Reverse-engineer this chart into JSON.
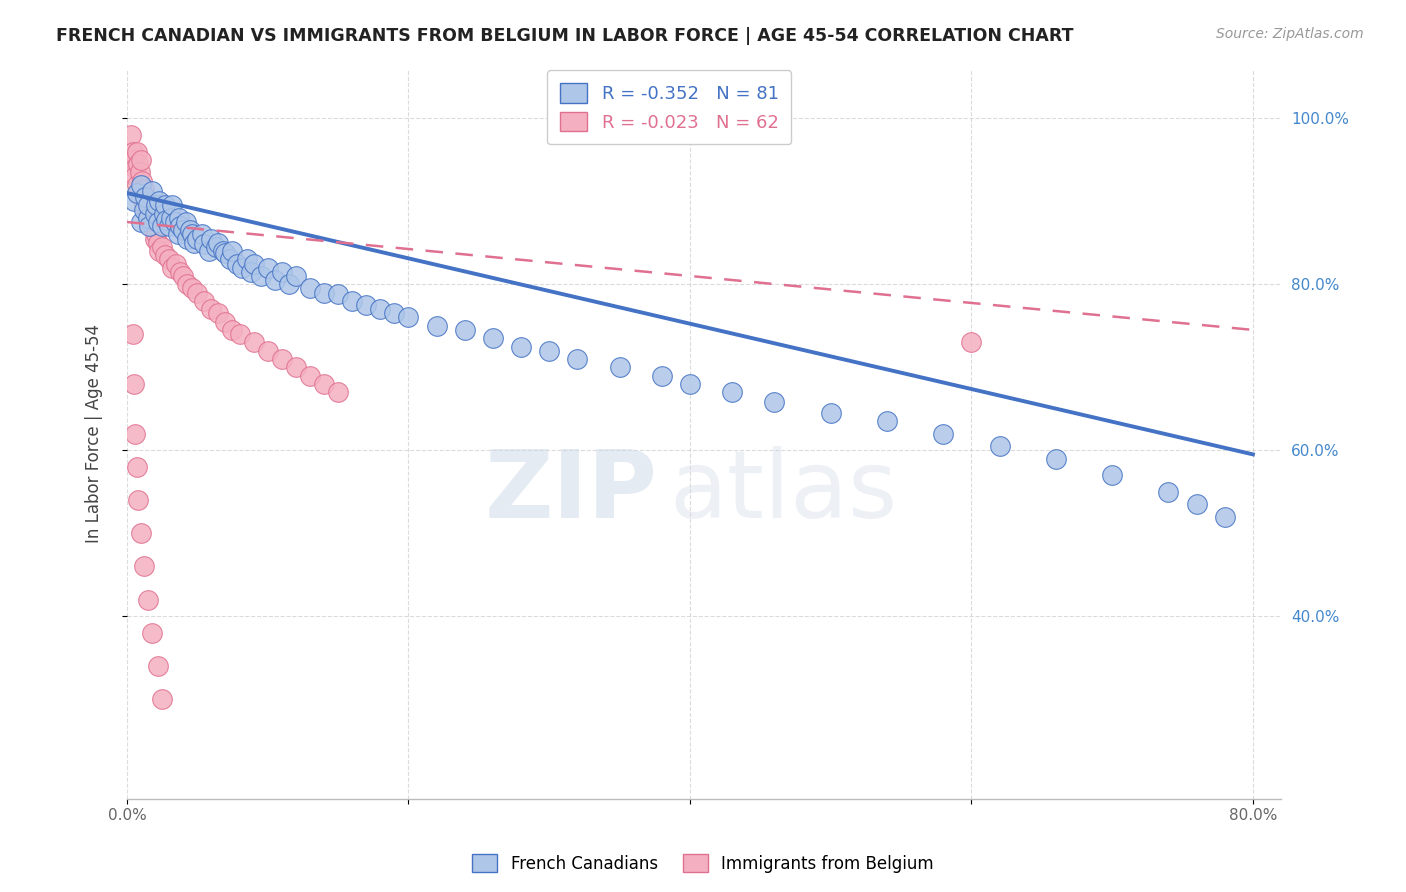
{
  "title": "FRENCH CANADIAN VS IMMIGRANTS FROM BELGIUM IN LABOR FORCE | AGE 45-54 CORRELATION CHART",
  "source": "Source: ZipAtlas.com",
  "ylabel": "In Labor Force | Age 45-54",
  "xlim": [
    0.0,
    0.82
  ],
  "ylim": [
    0.18,
    1.06
  ],
  "xtick_positions": [
    0.0,
    0.2,
    0.4,
    0.6,
    0.8
  ],
  "xticklabels": [
    "0.0%",
    "",
    "",
    "",
    "80.0%"
  ],
  "ytick_positions": [
    0.4,
    0.6,
    0.8,
    1.0
  ],
  "yticklabels": [
    "40.0%",
    "60.0%",
    "80.0%",
    "100.0%"
  ],
  "legend_entries": [
    {
      "label": "R = -0.352   N = 81",
      "color": "#4472c4"
    },
    {
      "label": "R = -0.023   N = 62",
      "color": "#e07090"
    }
  ],
  "blue_scatter_x": [
    0.005,
    0.007,
    0.01,
    0.01,
    0.012,
    0.013,
    0.015,
    0.015,
    0.016,
    0.018,
    0.02,
    0.021,
    0.022,
    0.023,
    0.025,
    0.026,
    0.027,
    0.028,
    0.03,
    0.031,
    0.032,
    0.034,
    0.036,
    0.037,
    0.038,
    0.04,
    0.042,
    0.043,
    0.045,
    0.046,
    0.048,
    0.05,
    0.053,
    0.055,
    0.058,
    0.06,
    0.063,
    0.065,
    0.068,
    0.07,
    0.073,
    0.075,
    0.078,
    0.082,
    0.085,
    0.088,
    0.09,
    0.095,
    0.1,
    0.105,
    0.11,
    0.115,
    0.12,
    0.13,
    0.14,
    0.15,
    0.16,
    0.17,
    0.18,
    0.19,
    0.2,
    0.22,
    0.24,
    0.26,
    0.28,
    0.3,
    0.32,
    0.35,
    0.38,
    0.4,
    0.43,
    0.46,
    0.5,
    0.54,
    0.58,
    0.62,
    0.66,
    0.7,
    0.74,
    0.76,
    0.78
  ],
  "blue_scatter_y": [
    0.9,
    0.91,
    0.875,
    0.92,
    0.89,
    0.905,
    0.88,
    0.895,
    0.87,
    0.912,
    0.885,
    0.895,
    0.875,
    0.9,
    0.87,
    0.885,
    0.895,
    0.878,
    0.87,
    0.88,
    0.895,
    0.875,
    0.86,
    0.88,
    0.87,
    0.865,
    0.875,
    0.855,
    0.865,
    0.86,
    0.85,
    0.855,
    0.86,
    0.848,
    0.84,
    0.855,
    0.845,
    0.85,
    0.84,
    0.838,
    0.83,
    0.84,
    0.825,
    0.82,
    0.83,
    0.815,
    0.825,
    0.81,
    0.82,
    0.805,
    0.815,
    0.8,
    0.81,
    0.795,
    0.79,
    0.788,
    0.78,
    0.775,
    0.77,
    0.765,
    0.76,
    0.75,
    0.745,
    0.735,
    0.725,
    0.72,
    0.71,
    0.7,
    0.69,
    0.68,
    0.67,
    0.658,
    0.645,
    0.635,
    0.62,
    0.605,
    0.59,
    0.57,
    0.55,
    0.535,
    0.52
  ],
  "pink_scatter_x": [
    0.003,
    0.004,
    0.005,
    0.006,
    0.006,
    0.007,
    0.007,
    0.008,
    0.008,
    0.009,
    0.01,
    0.01,
    0.011,
    0.012,
    0.012,
    0.013,
    0.014,
    0.015,
    0.015,
    0.016,
    0.017,
    0.018,
    0.019,
    0.02,
    0.021,
    0.022,
    0.023,
    0.025,
    0.027,
    0.03,
    0.032,
    0.035,
    0.038,
    0.04,
    0.043,
    0.046,
    0.05,
    0.055,
    0.06,
    0.065,
    0.07,
    0.075,
    0.08,
    0.09,
    0.1,
    0.11,
    0.12,
    0.13,
    0.14,
    0.15,
    0.004,
    0.005,
    0.006,
    0.007,
    0.008,
    0.01,
    0.012,
    0.015,
    0.018,
    0.022,
    0.025,
    0.6
  ],
  "pink_scatter_y": [
    0.98,
    0.96,
    0.95,
    0.94,
    0.93,
    0.96,
    0.92,
    0.945,
    0.91,
    0.935,
    0.95,
    0.905,
    0.925,
    0.915,
    0.895,
    0.905,
    0.89,
    0.895,
    0.88,
    0.875,
    0.88,
    0.87,
    0.865,
    0.855,
    0.86,
    0.85,
    0.84,
    0.845,
    0.835,
    0.83,
    0.82,
    0.825,
    0.815,
    0.81,
    0.8,
    0.795,
    0.79,
    0.78,
    0.77,
    0.765,
    0.755,
    0.745,
    0.74,
    0.73,
    0.72,
    0.71,
    0.7,
    0.69,
    0.68,
    0.67,
    0.74,
    0.68,
    0.62,
    0.58,
    0.54,
    0.5,
    0.46,
    0.42,
    0.38,
    0.34,
    0.3,
    0.73
  ],
  "blue_line_x": [
    0.0,
    0.8
  ],
  "blue_line_y": [
    0.91,
    0.595
  ],
  "pink_line_x": [
    0.0,
    0.8
  ],
  "pink_line_y": [
    0.875,
    0.745
  ],
  "blue_color": "#4472c4",
  "blue_scatter_color": "#aec6e8",
  "pink_color": "#e07090",
  "pink_scatter_color": "#f4b0c0",
  "watermark_zip": "ZIP",
  "watermark_atlas": "atlas",
  "background_color": "#ffffff",
  "grid_color": "#cccccc"
}
